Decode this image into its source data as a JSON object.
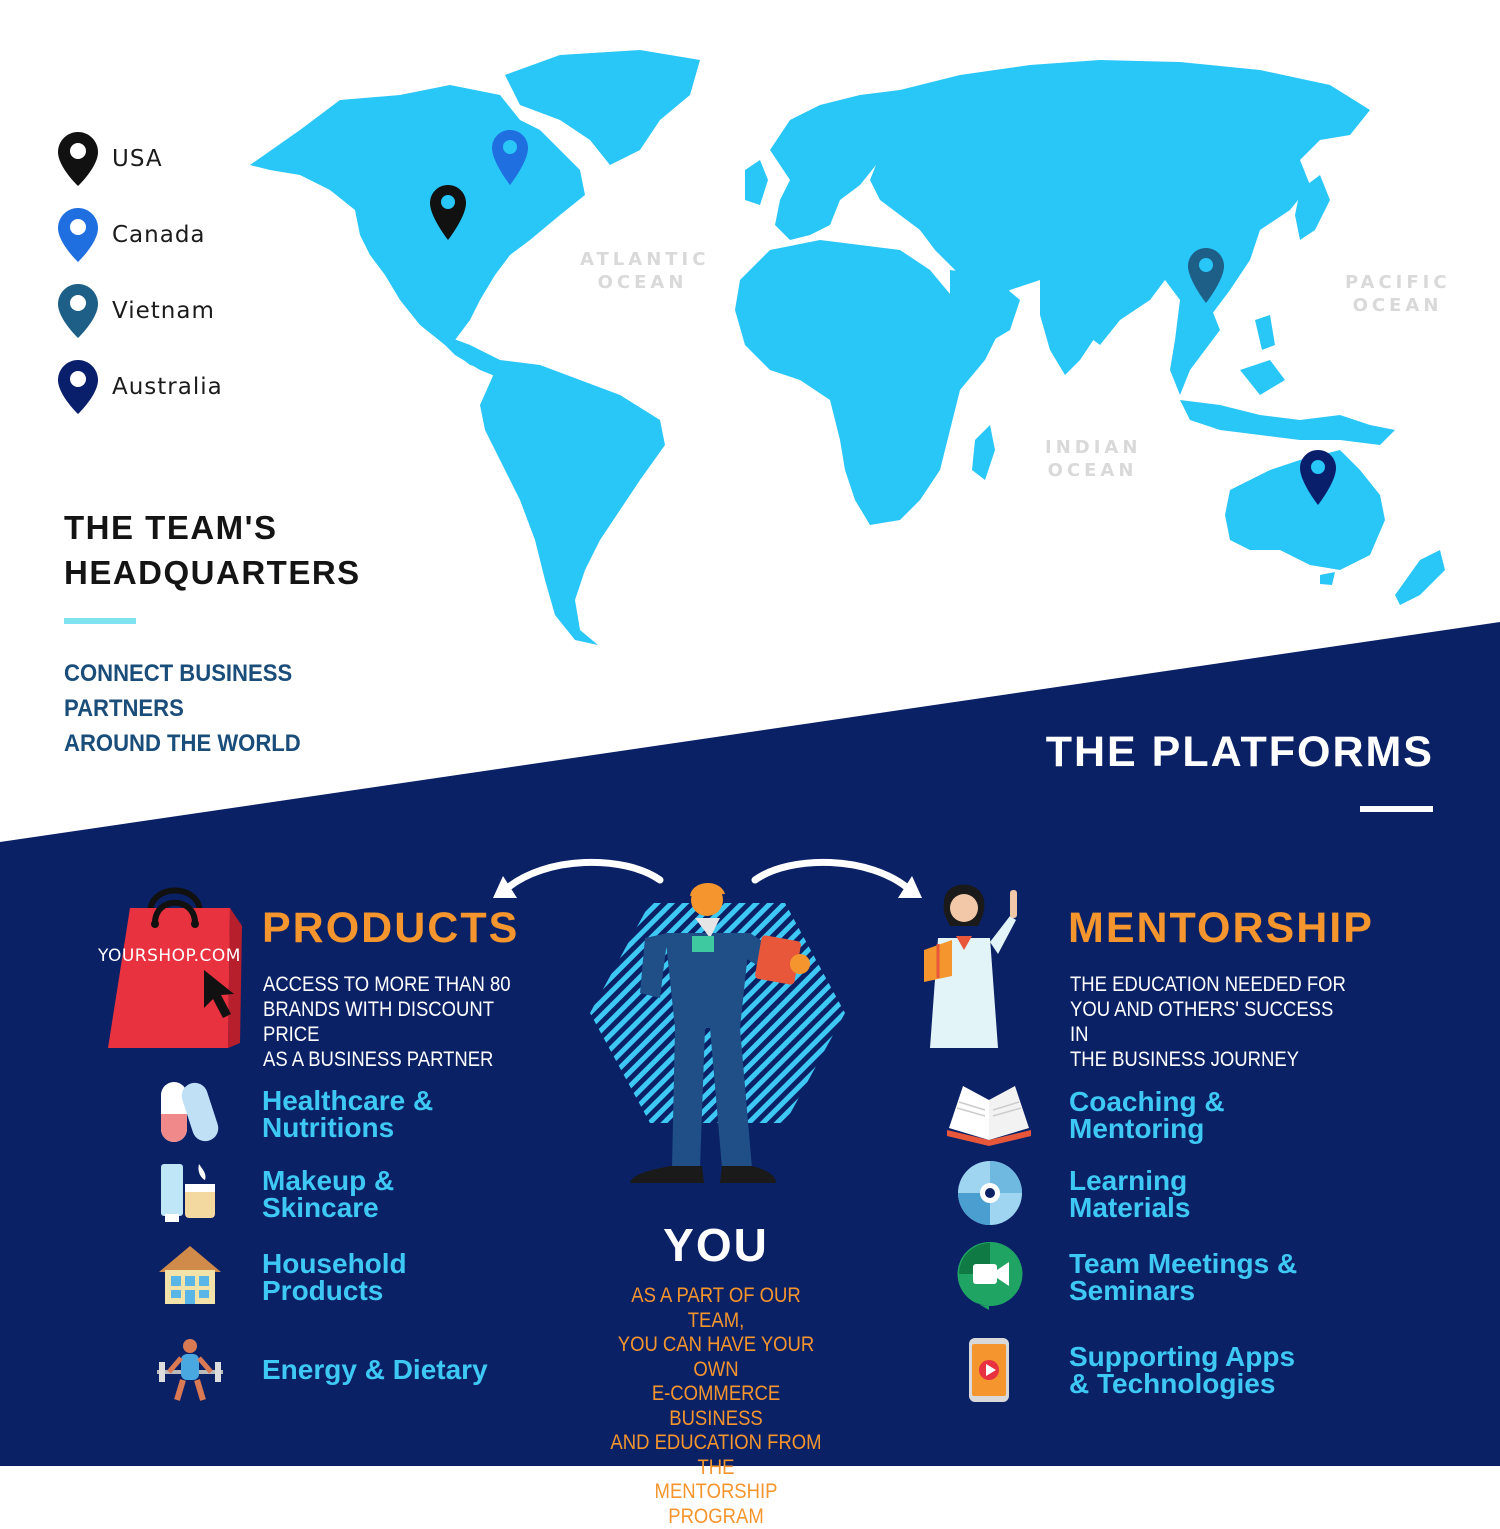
{
  "legend": {
    "items": [
      {
        "label": "USA",
        "color": "#111111"
      },
      {
        "label": "Canada",
        "color": "#1f6fe0"
      },
      {
        "label": "Vietnam",
        "color": "#1d5f86"
      },
      {
        "label": "Australia",
        "color": "#0a1f6b"
      }
    ]
  },
  "map": {
    "land_color": "#29c6f8",
    "oceans": {
      "atlantic_1": "ATLANTIC",
      "atlantic_2": "OCEAN",
      "pacific_1": "PACIFIC",
      "pacific_2": "OCEAN",
      "indian_1": "INDIAN",
      "indian_2": "OCEAN"
    }
  },
  "headquarters": {
    "title_line1": "THE TEAM'S",
    "title_line2": "HEADQUARTERS",
    "subtitle_line1": "CONNECT BUSINESS PARTNERS",
    "subtitle_line2": "AROUND THE WORLD"
  },
  "platforms": {
    "title": "THE PLATFORMS"
  },
  "products": {
    "bag_label": "YOURSHOP.COM",
    "title": "PRODUCTS",
    "desc_line1": "ACCESS TO MORE THAN 80",
    "desc_line2": "BRANDS WITH  DISCOUNT PRICE",
    "desc_line3": "AS A BUSINESS PARTNER",
    "items": [
      {
        "label": "Healthcare &\nNutritions",
        "icon": "pill-icon"
      },
      {
        "label": "Makeup &\nSkincare",
        "icon": "cosmetics-icon"
      },
      {
        "label": "Household\nProducts",
        "icon": "house-icon"
      },
      {
        "label": "Energy & Dietary",
        "icon": "weightlifter-icon"
      }
    ]
  },
  "you": {
    "title": "YOU",
    "desc_line1": "AS A PART OF OUR TEAM,",
    "desc_line2": "YOU CAN HAVE YOUR OWN",
    "desc_line3": "E-COMMERCE BUSINESS",
    "desc_line4": "AND EDUCATION FROM THE",
    "desc_line5": "MENTORSHIP PROGRAM"
  },
  "mentorship": {
    "title": "MENTORSHIP",
    "desc_line1": "THE EDUCATION NEEDED FOR",
    "desc_line2": "YOU AND OTHERS' SUCCESS IN",
    "desc_line3": "THE BUSINESS JOURNEY",
    "items": [
      {
        "label": "Coaching &\nMentoring",
        "icon": "open-book-icon"
      },
      {
        "label": "Learning\nMaterials",
        "icon": "disc-icon"
      },
      {
        "label": "Team Meetings &\nSeminars",
        "icon": "video-meeting-icon"
      },
      {
        "label": "Supporting Apps\n& Technologies",
        "icon": "phone-video-icon"
      }
    ]
  },
  "colors": {
    "navy": "#0b2166",
    "accent_orange": "#f5952d",
    "accent_cyan": "#3ec9f5"
  }
}
